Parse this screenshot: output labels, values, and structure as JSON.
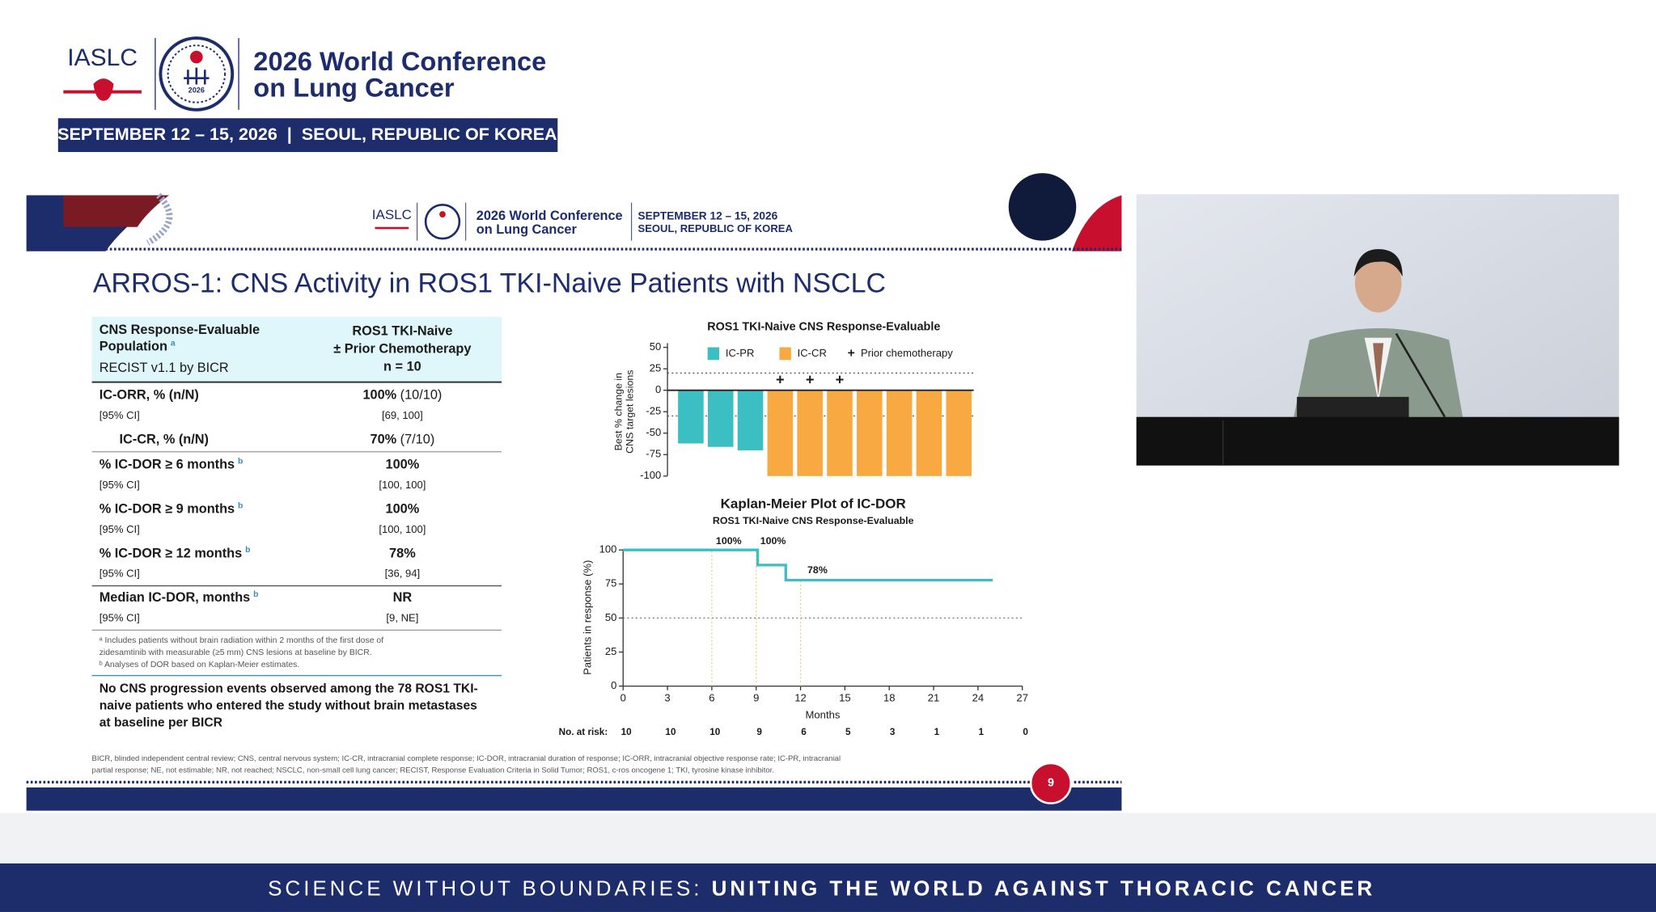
{
  "header": {
    "org": "IASLC",
    "logo_year": "2026",
    "title_line1": "2026 World Conference",
    "title_line2": "on Lung Cancer",
    "dates": "SEPTEMBER 12 – 15, 2026  |  SEOUL, REPUBLIC OF KOREA"
  },
  "slide": {
    "header": {
      "org": "IASLC",
      "title_line1": "2026 World Conference",
      "title_line2": "on Lung Cancer",
      "dates": "SEPTEMBER 12 – 15, 2026",
      "location": "SEOUL, REPUBLIC OF KOREA"
    },
    "title": "ARROS-1: CNS Activity in ROS1 TKI-Naive Patients with NSCLC",
    "table": {
      "head_left": [
        "CNS Response-Evaluable",
        "Population"
      ],
      "head_left_sup": "a",
      "head_left_sub": "RECIST v1.1 by BICR",
      "head_right": [
        "ROS1 TKI-Naive",
        "± Prior Chemotherapy",
        "n = 10"
      ],
      "rows": [
        {
          "label": "IC-ORR, % (n/N)",
          "value": "100%",
          "value_extra": " (10/10)",
          "ci_label": "[95% CI]",
          "ci": "[69, 100]"
        },
        {
          "label": "IC-CR, % (n/N)",
          "value": "70%",
          "value_extra": " (7/10)",
          "indent": true
        },
        {
          "label": "% IC-DOR ≥ 6 months",
          "sup": "b",
          "value": "100%",
          "ci_label": "[95% CI]",
          "ci": "[100, 100]"
        },
        {
          "label": "% IC-DOR ≥ 9 months",
          "sup": "b",
          "value": "100%",
          "ci_label": "[95% CI]",
          "ci": "[100, 100]"
        },
        {
          "label": "% IC-DOR ≥ 12 months",
          "sup": "b",
          "value": "78%",
          "ci_label": "[95% CI]",
          "ci": "[36, 94]"
        },
        {
          "label": "Median IC-DOR, months",
          "sup": "b",
          "value": "NR",
          "ci_label": "[95% CI]",
          "ci": "[9, NE]"
        }
      ],
      "footnotes": [
        "ᵃ Includes patients without brain radiation within 2 months of the first dose of",
        "zidesamtinib with measurable (≥5 mm) CNS lesions at baseline by BICR.",
        "ᵇ Analyses of DOR based on Kaplan-Meier estimates."
      ],
      "conclusion": [
        "No CNS progression events observed among the 78 ROS1 TKI-",
        "naive patients who entered the study without brain metastases",
        "at baseline per BICR"
      ]
    },
    "abbreviations": [
      "BICR, blinded independent central review; CNS, central nervous system; IC-CR, intracranial complete response; IC-DOR, intracranial duration of response; IC-ORR, intracranial objective response rate; IC-PR, intracranial",
      "partial response; NE, not estimable; NR, not reached; NSCLC, non-small cell lung cancer; RECIST, Response Evaluation Criteria in Solid Tumor; ROS1, c-ros oncogene 1; TKI, tyrosine kinase inhibitor."
    ],
    "page_number": "9"
  },
  "chart_data": [
    {
      "type": "bar",
      "title": "ROS1 TKI-Naive CNS Response-Evaluable",
      "ylabel": [
        "Best % change in",
        "CNS target lesions"
      ],
      "categories": [
        null,
        null,
        null,
        null,
        null,
        null,
        null,
        null,
        null,
        null
      ],
      "series": [
        {
          "name": "IC-PR",
          "color": "#3cbfc2",
          "values": [
            -62,
            -66,
            -70,
            null,
            null,
            null,
            null,
            null,
            null,
            null
          ]
        },
        {
          "name": "IC-CR",
          "color": "#f8a942",
          "values": [
            null,
            null,
            null,
            -100,
            -100,
            -100,
            -100,
            -100,
            -100,
            -100
          ]
        }
      ],
      "prior_chemo": [
        false,
        false,
        false,
        true,
        true,
        true,
        false,
        false,
        false,
        false
      ],
      "prior_chemo_marker": "+",
      "prior_chemo_label": "Prior chemotherapy",
      "reference_lines": [
        20,
        -30
      ],
      "ylim": [
        -100,
        55
      ],
      "yticks": [
        50,
        25,
        0,
        -25,
        -50,
        -75,
        -100
      ]
    },
    {
      "type": "line",
      "title": "Kaplan-Meier Plot of IC-DOR",
      "subtitle": "ROS1 TKI-Naive CNS Response-Evaluable",
      "xlabel": "Months",
      "ylabel": "Patients in response  (%)",
      "x": [
        0,
        9.1,
        9.1,
        11,
        11,
        25
      ],
      "values": [
        100,
        100,
        88.9,
        88.9,
        77.8,
        77.8
      ],
      "color": "#3cbfc2",
      "annotations": [
        {
          "x": 6,
          "y": 100,
          "label": "100%"
        },
        {
          "x": 9,
          "y": 100,
          "label": "100%"
        },
        {
          "x": 12,
          "y": 78,
          "label": "78%"
        }
      ],
      "reference_lines": [
        50
      ],
      "xlim": [
        0,
        27
      ],
      "xticks": [
        0,
        3,
        6,
        9,
        12,
        15,
        18,
        21,
        24,
        27
      ],
      "ylim": [
        0,
        100
      ],
      "yticks": [
        0,
        25,
        50,
        75,
        100
      ],
      "at_risk_label": "No. at risk:",
      "at_risk": [
        10,
        10,
        10,
        9,
        6,
        5,
        3,
        1,
        1,
        0
      ]
    }
  ],
  "footer": {
    "lead": "SCIENCE WITHOUT BOUNDARIES: ",
    "main": "UNITING THE WORLD AGAINST THORACIC CANCER"
  }
}
